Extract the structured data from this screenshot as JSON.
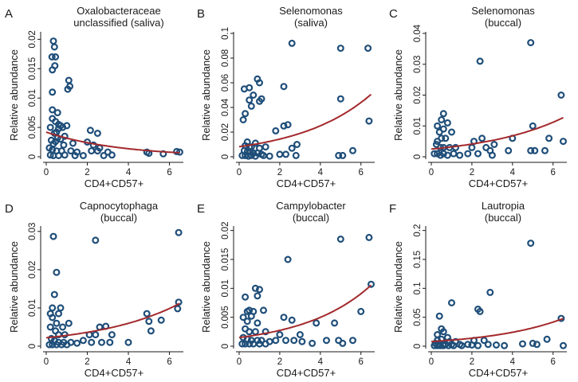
{
  "chart_data": [
    {
      "id": "A",
      "type": "scatter",
      "letter": "A",
      "title": [
        "Oxalobacteraceae",
        "unclassified (saliva)"
      ],
      "xlabel": "CD4+CD57+",
      "ylabel": "Relative abundance",
      "xlim": [
        0,
        6.6
      ],
      "ylim": [
        0,
        0.021
      ],
      "xticks": [
        0,
        2,
        4,
        6
      ],
      "yticks": [
        0,
        0.005,
        0.01,
        0.015,
        0.02
      ],
      "ytick_labels": [
        "0",
        "0.005",
        "0.01",
        "0.015",
        "0.02"
      ],
      "fit_curve": [
        0.0042,
        -0.28
      ],
      "points": [
        [
          0.35,
          0.0197
        ],
        [
          0.4,
          0.0187
        ],
        [
          0.28,
          0.017
        ],
        [
          0.45,
          0.017
        ],
        [
          0.42,
          0.0155
        ],
        [
          0.3,
          0.0148
        ],
        [
          0.3,
          0.011
        ],
        [
          1.1,
          0.013
        ],
        [
          1.15,
          0.012
        ],
        [
          1.05,
          0.0115
        ],
        [
          0.3,
          0.008
        ],
        [
          0.55,
          0.0075
        ],
        [
          0.3,
          0.0065
        ],
        [
          0.45,
          0.006
        ],
        [
          0.2,
          0.005
        ],
        [
          0.6,
          0.0055
        ],
        [
          0.7,
          0.0053
        ],
        [
          1.0,
          0.0053
        ],
        [
          0.6,
          0.0048
        ],
        [
          0.8,
          0.005
        ],
        [
          0.5,
          0.0042
        ],
        [
          0.4,
          0.004
        ],
        [
          0.9,
          0.0035
        ],
        [
          0.55,
          0.0032
        ],
        [
          0.7,
          0.003
        ],
        [
          0.25,
          0.0028
        ],
        [
          0.45,
          0.0026
        ],
        [
          0.35,
          0.0022
        ],
        [
          1.3,
          0.0023
        ],
        [
          0.85,
          0.002
        ],
        [
          2.15,
          0.0045
        ],
        [
          2.5,
          0.004
        ],
        [
          2.0,
          0.0025
        ],
        [
          2.3,
          0.002
        ],
        [
          2.6,
          0.0015
        ],
        [
          0.15,
          0.0015
        ],
        [
          0.3,
          0.0012
        ],
        [
          0.5,
          0.001
        ],
        [
          0.75,
          0.001
        ],
        [
          1.2,
          0.001
        ],
        [
          1.5,
          0.0008
        ],
        [
          2.2,
          0.001
        ],
        [
          2.5,
          0.001
        ],
        [
          3.0,
          0.0008
        ],
        [
          4.9,
          0.0008
        ],
        [
          5.0,
          0.0006
        ],
        [
          5.7,
          0.0005
        ],
        [
          6.35,
          0.0009
        ],
        [
          6.5,
          0.0008
        ],
        [
          0.2,
          0.0003
        ],
        [
          0.35,
          0.0002
        ],
        [
          0.6,
          0.0002
        ],
        [
          0.9,
          0.0003
        ],
        [
          1.4,
          0.0002
        ],
        [
          1.8,
          0.0002
        ],
        [
          2.8,
          0.0002
        ],
        [
          3.2,
          0.0003
        ]
      ]
    },
    {
      "id": "B",
      "type": "scatter",
      "letter": "B",
      "title": [
        "Selenomonas",
        "(saliva)"
      ],
      "xlabel": "CD4+CD57+",
      "ylabel": "Relative abundance",
      "xlim": [
        0,
        6.6
      ],
      "ylim": [
        0,
        0.1
      ],
      "xticks": [
        0,
        2,
        4,
        6
      ],
      "yticks": [
        0,
        0.02,
        0.04,
        0.06,
        0.08,
        0.1
      ],
      "ytick_labels": [
        "0",
        "0.02",
        "0.04",
        "0.06",
        "0.08",
        "0.1"
      ],
      "fit_curve": [
        0.0082,
        0.28
      ],
      "points": [
        [
          2.6,
          0.092
        ],
        [
          5.0,
          0.088
        ],
        [
          6.35,
          0.088
        ],
        [
          0.9,
          0.063
        ],
        [
          1.0,
          0.06
        ],
        [
          0.5,
          0.056
        ],
        [
          0.25,
          0.055
        ],
        [
          0.7,
          0.05
        ],
        [
          2.2,
          0.057
        ],
        [
          0.5,
          0.046
        ],
        [
          1.1,
          0.047
        ],
        [
          1.0,
          0.045
        ],
        [
          5.0,
          0.047
        ],
        [
          0.6,
          0.041
        ],
        [
          0.3,
          0.035
        ],
        [
          0.2,
          0.03
        ],
        [
          6.4,
          0.029
        ],
        [
          2.2,
          0.025
        ],
        [
          2.4,
          0.026
        ],
        [
          1.8,
          0.021
        ],
        [
          0.4,
          0.012
        ],
        [
          0.8,
          0.011
        ],
        [
          0.3,
          0.009
        ],
        [
          0.5,
          0.008
        ],
        [
          0.6,
          0.008
        ],
        [
          1.0,
          0.007
        ],
        [
          1.3,
          0.008
        ],
        [
          0.25,
          0.005
        ],
        [
          0.4,
          0.004
        ],
        [
          0.55,
          0.004
        ],
        [
          0.7,
          0.003
        ],
        [
          0.9,
          0.003
        ],
        [
          1.1,
          0.002
        ],
        [
          2.6,
          0.007
        ],
        [
          2.85,
          0.01
        ],
        [
          0.15,
          0.001
        ],
        [
          0.3,
          0.001
        ],
        [
          0.45,
          0.0005
        ],
        [
          0.6,
          0.001
        ],
        [
          0.8,
          0.0005
        ],
        [
          1.2,
          0.001
        ],
        [
          1.5,
          0.0005
        ],
        [
          2.0,
          0.002
        ],
        [
          2.3,
          0.002
        ],
        [
          2.8,
          0.001
        ],
        [
          4.9,
          0.001
        ],
        [
          5.1,
          0.001
        ],
        [
          5.6,
          0.005
        ]
      ]
    },
    {
      "id": "C",
      "type": "scatter",
      "letter": "C",
      "title": [
        "Selenomonas",
        "(buccal)"
      ],
      "xlabel": "CD4+CD57+",
      "ylabel": "Relative abundance",
      "xlim": [
        0,
        6.6
      ],
      "ylim": [
        0,
        0.04
      ],
      "xticks": [
        0,
        2,
        4,
        6
      ],
      "yticks": [
        0,
        0.01,
        0.02,
        0.03,
        0.04
      ],
      "ytick_labels": [
        "0",
        "0.01",
        "0.02",
        "0.03",
        "0.04"
      ],
      "fit_curve": [
        0.0025,
        0.25
      ],
      "points": [
        [
          4.9,
          0.037
        ],
        [
          2.4,
          0.031
        ],
        [
          6.4,
          0.02
        ],
        [
          0.6,
          0.014
        ],
        [
          0.5,
          0.012
        ],
        [
          0.3,
          0.01
        ],
        [
          0.8,
          0.011
        ],
        [
          0.6,
          0.009
        ],
        [
          0.4,
          0.008
        ],
        [
          1.0,
          0.008
        ],
        [
          5.0,
          0.01
        ],
        [
          0.5,
          0.006
        ],
        [
          0.7,
          0.006
        ],
        [
          0.3,
          0.005
        ],
        [
          2.5,
          0.006
        ],
        [
          2.1,
          0.005
        ],
        [
          3.1,
          0.004
        ],
        [
          4.0,
          0.006
        ],
        [
          5.8,
          0.006
        ],
        [
          6.5,
          0.005
        ],
        [
          0.25,
          0.004
        ],
        [
          0.45,
          0.003
        ],
        [
          0.6,
          0.003
        ],
        [
          0.9,
          0.003
        ],
        [
          1.2,
          0.003
        ],
        [
          2.0,
          0.003
        ],
        [
          2.7,
          0.003
        ],
        [
          2.9,
          0.002
        ],
        [
          3.8,
          0.002
        ],
        [
          5.6,
          0.002
        ],
        [
          0.15,
          0.001
        ],
        [
          0.3,
          0.001
        ],
        [
          0.45,
          0.0005
        ],
        [
          0.6,
          0.001
        ],
        [
          0.8,
          0.0005
        ],
        [
          1.1,
          0.001
        ],
        [
          1.4,
          0.0005
        ],
        [
          1.8,
          0.001
        ],
        [
          2.3,
          0.001
        ],
        [
          3.0,
          0.0005
        ],
        [
          4.9,
          0.002
        ],
        [
          5.1,
          0.002
        ]
      ]
    },
    {
      "id": "D",
      "type": "scatter",
      "letter": "D",
      "title": [
        "Capnocytophaga",
        "(buccal)"
      ],
      "xlabel": "CD4+CD57+",
      "ylabel": "Relative abundance",
      "xlim": [
        0,
        6.6
      ],
      "ylim": [
        0,
        0.031
      ],
      "xticks": [
        0,
        2,
        4,
        6
      ],
      "yticks": [
        0,
        0.01,
        0.02,
        0.03
      ],
      "ytick_labels": [
        "0",
        "0.01",
        "0.02",
        "0.03"
      ],
      "fit_curve": [
        0.0022,
        0.25
      ],
      "points": [
        [
          0.35,
          0.0287
        ],
        [
          2.4,
          0.0277
        ],
        [
          6.45,
          0.0297
        ],
        [
          0.5,
          0.0193
        ],
        [
          0.4,
          0.0135
        ],
        [
          0.3,
          0.01
        ],
        [
          0.7,
          0.01
        ],
        [
          0.2,
          0.0085
        ],
        [
          0.6,
          0.0085
        ],
        [
          0.3,
          0.0075
        ],
        [
          0.5,
          0.006
        ],
        [
          1.1,
          0.006
        ],
        [
          0.8,
          0.005
        ],
        [
          0.2,
          0.005
        ],
        [
          0.45,
          0.004
        ],
        [
          0.6,
          0.003
        ],
        [
          0.9,
          0.003
        ],
        [
          2.6,
          0.005
        ],
        [
          2.9,
          0.0052
        ],
        [
          2.1,
          0.003
        ],
        [
          2.4,
          0.003
        ],
        [
          3.2,
          0.003
        ],
        [
          4.9,
          0.0085
        ],
        [
          5.0,
          0.0065
        ],
        [
          5.1,
          0.004
        ],
        [
          5.6,
          0.0068
        ],
        [
          6.4,
          0.0098
        ],
        [
          6.45,
          0.0115
        ],
        [
          0.25,
          0.002
        ],
        [
          0.4,
          0.0015
        ],
        [
          0.6,
          0.001
        ],
        [
          0.85,
          0.001
        ],
        [
          1.2,
          0.001
        ],
        [
          1.5,
          0.0008
        ],
        [
          1.8,
          0.0015
        ],
        [
          2.2,
          0.001
        ],
        [
          2.7,
          0.001
        ],
        [
          3.1,
          0.001
        ],
        [
          4.0,
          0.001
        ],
        [
          0.15,
          0.0004
        ],
        [
          0.3,
          0.0004
        ],
        [
          0.5,
          0.0004
        ],
        [
          0.75,
          0.0004
        ],
        [
          1.0,
          0.0004
        ]
      ]
    },
    {
      "id": "E",
      "type": "scatter",
      "letter": "E",
      "title": [
        "Campylobacter",
        "(buccal)"
      ],
      "xlabel": "CD4+CD57+",
      "ylabel": "Relative abundance",
      "xlim": [
        0,
        6.6
      ],
      "ylim": [
        0,
        0.0205
      ],
      "xticks": [
        0,
        2,
        4,
        6
      ],
      "yticks": [
        0,
        0.005,
        0.01,
        0.015,
        0.02
      ],
      "ytick_labels": [
        "0",
        "0.005",
        "0.01",
        "0.015",
        "0.02"
      ],
      "fit_curve": [
        0.0015,
        0.3
      ],
      "points": [
        [
          5.0,
          0.0185
        ],
        [
          6.4,
          0.0188
        ],
        [
          2.4,
          0.015
        ],
        [
          6.5,
          0.0107
        ],
        [
          0.8,
          0.01
        ],
        [
          1.0,
          0.0098
        ],
        [
          0.9,
          0.0087
        ],
        [
          0.3,
          0.0085
        ],
        [
          0.5,
          0.0062
        ],
        [
          0.4,
          0.006
        ],
        [
          0.7,
          0.006
        ],
        [
          1.2,
          0.0062
        ],
        [
          0.2,
          0.005
        ],
        [
          0.6,
          0.0052
        ],
        [
          2.2,
          0.005
        ],
        [
          0.4,
          0.0043
        ],
        [
          0.9,
          0.004
        ],
        [
          2.6,
          0.0045
        ],
        [
          3.8,
          0.004
        ],
        [
          4.7,
          0.004
        ],
        [
          6.0,
          0.006
        ],
        [
          0.3,
          0.003
        ],
        [
          0.5,
          0.0025
        ],
        [
          0.8,
          0.0025
        ],
        [
          1.3,
          0.0025
        ],
        [
          2.0,
          0.002
        ],
        [
          3.0,
          0.002
        ],
        [
          0.2,
          0.0015
        ],
        [
          0.4,
          0.0012
        ],
        [
          0.6,
          0.001
        ],
        [
          0.9,
          0.001
        ],
        [
          1.1,
          0.001
        ],
        [
          1.5,
          0.0008
        ],
        [
          1.8,
          0.001
        ],
        [
          2.3,
          0.001
        ],
        [
          2.7,
          0.001
        ],
        [
          3.1,
          0.0008
        ],
        [
          3.6,
          0.0005
        ],
        [
          4.3,
          0.001
        ],
        [
          4.9,
          0.001
        ],
        [
          5.1,
          0.0005
        ],
        [
          5.6,
          0.001
        ],
        [
          0.15,
          0.0004
        ],
        [
          0.3,
          0.0004
        ],
        [
          0.5,
          0.0004
        ],
        [
          0.7,
          0.0004
        ],
        [
          1.0,
          0.0004
        ],
        [
          1.3,
          0.0004
        ]
      ]
    },
    {
      "id": "F",
      "type": "scatter",
      "letter": "F",
      "title": [
        "Lautropia",
        "(buccal)"
      ],
      "xlabel": "CD4+CD57+",
      "ylabel": "Relative abundance",
      "xlim": [
        0,
        6.6
      ],
      "ylim": [
        0,
        0.205
      ],
      "xticks": [
        0,
        2,
        4,
        6
      ],
      "yticks": [
        0,
        0.05,
        0.1,
        0.15,
        0.2
      ],
      "ytick_labels": [
        "0",
        "0.05",
        "0.1",
        "0.15",
        "0.2"
      ],
      "fit_curve": [
        0.008,
        0.275
      ],
      "points": [
        [
          4.9,
          0.178
        ],
        [
          2.9,
          0.093
        ],
        [
          1.0,
          0.075
        ],
        [
          2.3,
          0.064
        ],
        [
          2.4,
          0.06
        ],
        [
          0.4,
          0.052
        ],
        [
          6.4,
          0.048
        ],
        [
          5.7,
          0.012
        ],
        [
          0.5,
          0.03
        ],
        [
          0.3,
          0.02
        ],
        [
          0.6,
          0.025
        ],
        [
          0.8,
          0.015
        ],
        [
          0.3,
          0.01
        ],
        [
          0.5,
          0.012
        ],
        [
          0.9,
          0.008
        ],
        [
          1.2,
          0.008
        ],
        [
          2.1,
          0.01
        ],
        [
          2.6,
          0.01
        ],
        [
          0.2,
          0.005
        ],
        [
          0.4,
          0.004
        ],
        [
          0.6,
          0.004
        ],
        [
          0.7,
          0.003
        ],
        [
          1.0,
          0.003
        ],
        [
          1.4,
          0.003
        ],
        [
          1.8,
          0.003
        ],
        [
          2.0,
          0.002
        ],
        [
          2.8,
          0.003
        ],
        [
          3.2,
          0.002
        ],
        [
          4.5,
          0.004
        ],
        [
          5.0,
          0.005
        ],
        [
          5.2,
          0.003
        ],
        [
          0.15,
          0.001
        ],
        [
          0.3,
          0.001
        ],
        [
          0.45,
          0.001
        ],
        [
          0.6,
          0.001
        ],
        [
          0.85,
          0.001
        ],
        [
          1.1,
          0.001
        ],
        [
          1.5,
          0.001
        ],
        [
          2.3,
          0.001
        ],
        [
          3.6,
          0.001
        ],
        [
          6.5,
          0.001
        ]
      ]
    }
  ]
}
